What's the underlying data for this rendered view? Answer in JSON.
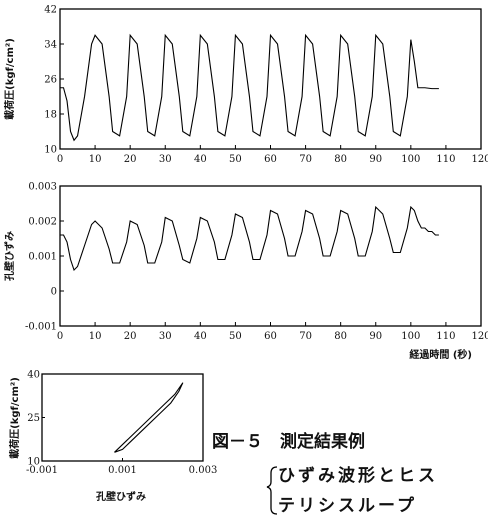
{
  "chart_data": [
    {
      "type": "line",
      "ylabel": "載荷圧(kgf/cm²)",
      "xlim": [
        0,
        120
      ],
      "ylim": [
        10,
        42
      ],
      "xticks": [
        "0",
        "10",
        "20",
        "30",
        "40",
        "50",
        "60",
        "70",
        "80",
        "90",
        "100",
        "110",
        "120"
      ],
      "yticks": [
        "10",
        "18",
        "26",
        "34",
        "42"
      ],
      "series": [
        {
          "x": [
            0,
            1,
            2,
            3,
            4,
            5,
            7,
            9,
            10,
            12,
            14,
            15,
            17,
            19,
            20,
            22,
            24,
            25,
            27,
            29,
            30,
            32,
            34,
            35,
            37,
            39,
            40,
            42,
            44,
            45,
            47,
            49,
            50,
            52,
            54,
            55,
            57,
            59,
            60,
            62,
            64,
            65,
            67,
            69,
            70,
            72,
            74,
            75,
            77,
            79,
            80,
            82,
            84,
            85,
            87,
            89,
            90,
            92,
            94,
            95,
            97,
            99,
            100,
            101,
            102,
            104,
            106,
            108
          ],
          "y": [
            24,
            24,
            21,
            14,
            12,
            13,
            22,
            34,
            36,
            34,
            22,
            14,
            13,
            22,
            36,
            34,
            22,
            14,
            13,
            22,
            36,
            34,
            22,
            14,
            13,
            22,
            36,
            34,
            22,
            14,
            13,
            22,
            36,
            34,
            22,
            14,
            13,
            22,
            36,
            34,
            22,
            14,
            13,
            22,
            36,
            34,
            22,
            14,
            13,
            22,
            36,
            34,
            22,
            14,
            13,
            22,
            36,
            34,
            22,
            14,
            13,
            22,
            35,
            30,
            24,
            24,
            23.8,
            23.8
          ]
        }
      ]
    },
    {
      "type": "line",
      "ylabel": "孔壁ひずみ",
      "xlabel": "経過時間 (秒)",
      "xlim": [
        0,
        120
      ],
      "ylim": [
        -0.001,
        0.003
      ],
      "xticks": [
        "0",
        "10",
        "20",
        "30",
        "40",
        "50",
        "60",
        "70",
        "80",
        "90",
        "100",
        "110",
        "120"
      ],
      "yticks": [
        "-0.001",
        "0",
        "0.001",
        "0.002",
        "0.003"
      ],
      "series": [
        {
          "x": [
            0,
            1,
            2,
            3,
            4,
            5,
            7,
            9,
            10,
            12,
            14,
            15,
            17,
            19,
            20,
            22,
            24,
            25,
            27,
            29,
            30,
            32,
            34,
            35,
            37,
            39,
            40,
            42,
            44,
            45,
            47,
            49,
            50,
            52,
            54,
            55,
            57,
            59,
            60,
            62,
            64,
            65,
            67,
            69,
            70,
            72,
            74,
            75,
            77,
            79,
            80,
            82,
            84,
            85,
            87,
            89,
            90,
            92,
            94,
            95,
            97,
            99,
            100,
            101,
            102,
            103,
            104,
            105,
            106,
            107,
            108
          ],
          "y": [
            0.0016,
            0.0016,
            0.0014,
            0.0009,
            0.0006,
            0.0007,
            0.0013,
            0.0019,
            0.002,
            0.0018,
            0.0012,
            0.0008,
            0.0008,
            0.0014,
            0.002,
            0.0019,
            0.0013,
            0.0008,
            0.0008,
            0.0014,
            0.0021,
            0.002,
            0.0013,
            0.0009,
            0.0008,
            0.0015,
            0.0021,
            0.002,
            0.0014,
            0.0009,
            0.0009,
            0.0016,
            0.0022,
            0.0021,
            0.0014,
            0.0009,
            0.0009,
            0.0016,
            0.0023,
            0.0022,
            0.0015,
            0.001,
            0.001,
            0.0017,
            0.0023,
            0.0022,
            0.0015,
            0.001,
            0.001,
            0.0017,
            0.0023,
            0.0022,
            0.0015,
            0.001,
            0.001,
            0.0017,
            0.0024,
            0.0022,
            0.0015,
            0.0011,
            0.0011,
            0.0018,
            0.0024,
            0.0023,
            0.002,
            0.0018,
            0.0018,
            0.0017,
            0.0017,
            0.0016,
            0.0016
          ]
        }
      ]
    },
    {
      "type": "line",
      "ylabel": "載荷圧(kgf/cm²)",
      "xlabel": "孔壁ひずみ",
      "xlim": [
        -0.001,
        0.003
      ],
      "ylim": [
        10,
        40
      ],
      "xticks": [
        "-0.001",
        "0.001",
        "0.003"
      ],
      "yticks": [
        "10",
        "25",
        "40"
      ],
      "series": [
        {
          "x": [
            0.0008,
            0.0011,
            0.0014,
            0.0017,
            0.002,
            0.0023,
            0.0025,
            0.0024,
            0.0022,
            0.0019,
            0.0016,
            0.0013,
            0.001,
            0.0008
          ],
          "y": [
            13,
            17,
            21,
            25,
            29,
            33,
            37,
            34,
            30,
            26,
            22,
            18,
            14,
            13
          ]
        }
      ]
    }
  ],
  "caption": {
    "title": "図－５　測定結果例",
    "line1": "ひずみ波形とヒス",
    "line2": "テリシスループ"
  }
}
